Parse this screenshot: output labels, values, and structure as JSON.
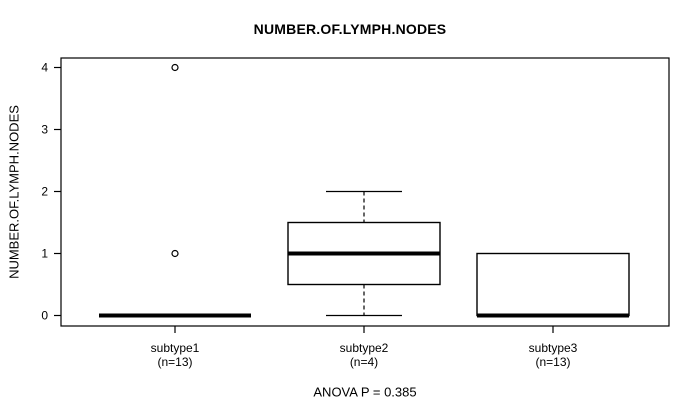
{
  "title": "NUMBER.OF.LYMPH.NODES",
  "y_axis_label": "NUMBER.OF.LYMPH.NODES",
  "footer": "ANOVA P = 0.385",
  "chart_data": {
    "type": "boxplot",
    "title": "NUMBER.OF.LYMPH.NODES",
    "ylabel": "NUMBER.OF.LYMPH.NODES",
    "annotation": "ANOVA P = 0.385",
    "grid": false,
    "ylim": [
      -0.16,
      4.16
    ],
    "y_ticks": [
      0,
      1,
      2,
      3,
      4
    ],
    "categories": [
      "subtype1",
      "subtype2",
      "subtype3"
    ],
    "groups": [
      {
        "label": "subtype1",
        "sublabel": "(n=13)",
        "n": 13,
        "whisker_low": 0,
        "q1": 0,
        "median": 0,
        "q3": 0,
        "whisker_high": 0,
        "outliers": [
          1,
          4
        ]
      },
      {
        "label": "subtype2",
        "sublabel": "(n=4)",
        "n": 4,
        "whisker_low": 0,
        "q1": 0.5,
        "median": 1,
        "q3": 1.5,
        "whisker_high": 2,
        "outliers": []
      },
      {
        "label": "subtype3",
        "sublabel": "(n=13)",
        "n": 13,
        "whisker_low": 0,
        "q1": 0,
        "median": 0,
        "q3": 1,
        "whisker_high": 1,
        "outliers": []
      }
    ],
    "colors": {
      "stroke": "#000000",
      "box_fill": "#ffffff",
      "background": "#ffffff"
    }
  }
}
